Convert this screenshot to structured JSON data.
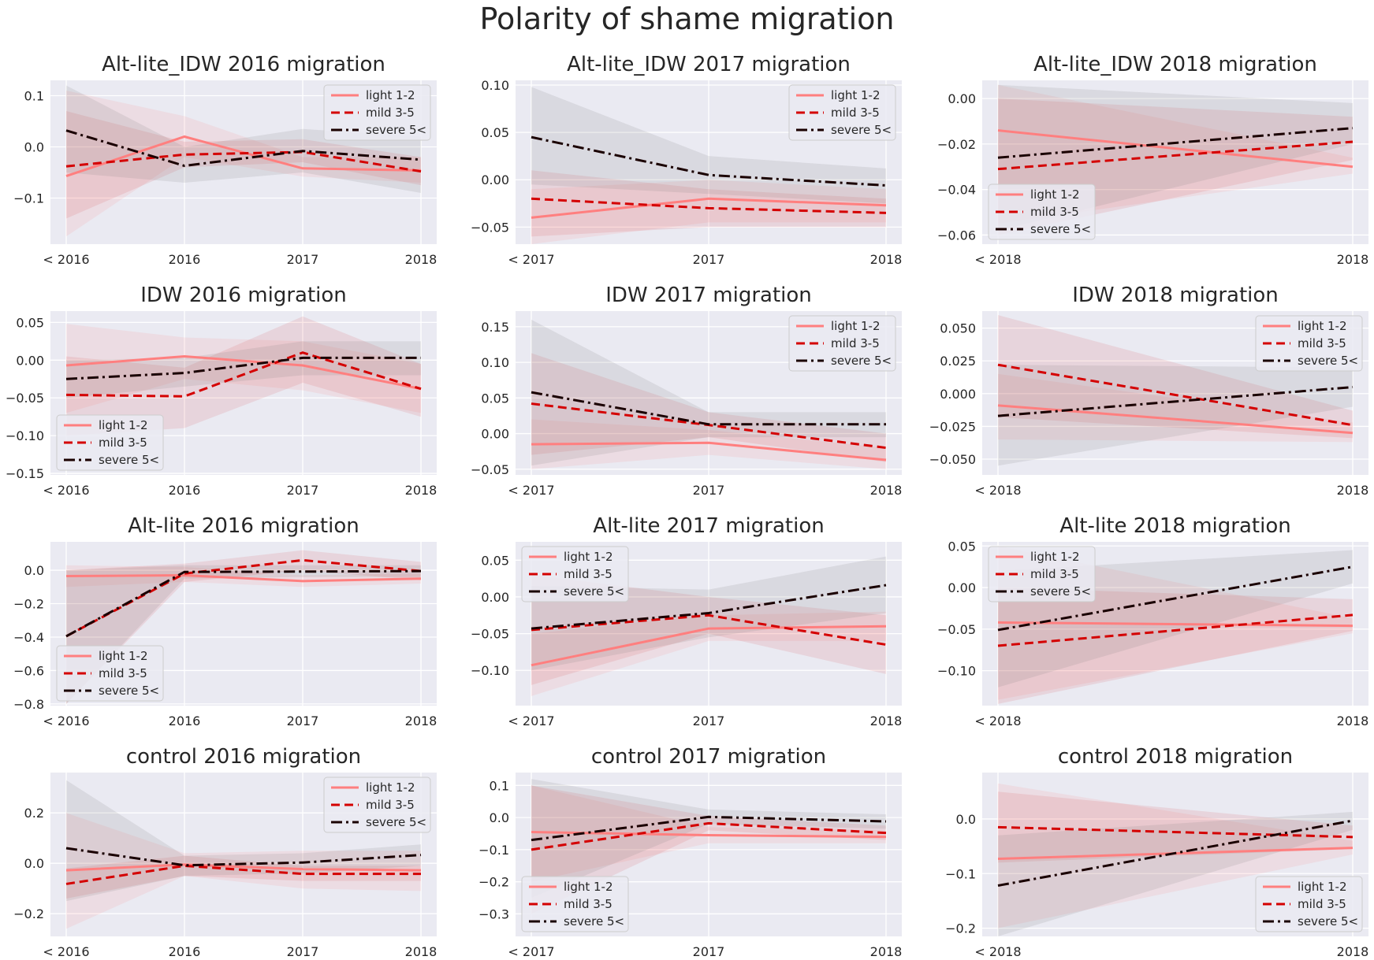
{
  "title": "Polarity of shame migration",
  "colors": {
    "light": "#ff7f7f",
    "mild": "#d40000",
    "severe": "#1a0000",
    "panel_bg": "#eaeaf2",
    "grid": "#ffffff",
    "text": "#262626"
  },
  "legend_labels": [
    "light 1-2",
    "mild 3-5",
    "severe 5<"
  ],
  "chart_data": [
    {
      "type": "line",
      "title": "Alt-lite_IDW 2016 migration",
      "categories": [
        "< 2016",
        "2016",
        "2017",
        "2018"
      ],
      "yticks": [
        0.1,
        0.0,
        -0.1
      ],
      "ytick_labels": [
        "0.1",
        "0.0",
        "−0.1"
      ],
      "ylim": [
        -0.19,
        0.13
      ],
      "legend_loc": "upper right",
      "series": [
        {
          "name": "light 1-2",
          "values": [
            -0.057,
            0.02,
            -0.042,
            -0.046
          ],
          "lower": [
            -0.175,
            -0.02,
            -0.058,
            -0.07
          ],
          "upper": [
            0.11,
            0.06,
            -0.02,
            -0.02
          ]
        },
        {
          "name": "mild 3-5",
          "values": [
            -0.038,
            -0.015,
            -0.01,
            -0.048
          ],
          "lower": [
            -0.14,
            -0.04,
            -0.03,
            -0.075
          ],
          "upper": [
            0.07,
            0.01,
            0.015,
            -0.02
          ]
        },
        {
          "name": "severe 5<",
          "values": [
            0.032,
            -0.037,
            -0.008,
            -0.025
          ],
          "lower": [
            -0.05,
            -0.07,
            -0.05,
            -0.09
          ],
          "upper": [
            0.12,
            0.0,
            0.035,
            0.02
          ]
        }
      ]
    },
    {
      "type": "line",
      "title": "Alt-lite_IDW 2017 migration",
      "categories": [
        "< 2017",
        "2017",
        "2018"
      ],
      "yticks": [
        0.1,
        0.05,
        0.0,
        -0.05
      ],
      "ytick_labels": [
        "0.10",
        "0.05",
        "0.00",
        "−0.05"
      ],
      "ylim": [
        -0.068,
        0.105
      ],
      "legend_loc": "upper right",
      "series": [
        {
          "name": "light 1-2",
          "values": [
            -0.04,
            -0.02,
            -0.027
          ],
          "lower": [
            -0.068,
            -0.045,
            -0.045
          ],
          "upper": [
            -0.01,
            0.0,
            -0.01
          ]
        },
        {
          "name": "mild 3-5",
          "values": [
            -0.02,
            -0.03,
            -0.035
          ],
          "lower": [
            -0.06,
            -0.05,
            -0.05
          ],
          "upper": [
            0.01,
            -0.01,
            -0.02
          ]
        },
        {
          "name": "severe 5<",
          "values": [
            0.045,
            0.005,
            -0.006
          ],
          "lower": [
            -0.005,
            -0.015,
            -0.025
          ],
          "upper": [
            0.098,
            0.025,
            0.012
          ]
        }
      ]
    },
    {
      "type": "line",
      "title": "Alt-lite_IDW 2018 migration",
      "categories": [
        "< 2018",
        "2018"
      ],
      "yticks": [
        0.0,
        -0.02,
        -0.04,
        -0.06
      ],
      "ytick_labels": [
        "0.00",
        "−0.02",
        "−0.04",
        "−0.06"
      ],
      "ylim": [
        -0.064,
        0.008
      ],
      "legend_loc": "lower left",
      "series": [
        {
          "name": "light 1-2",
          "values": [
            -0.014,
            -0.03
          ],
          "lower": [
            -0.055,
            -0.033
          ],
          "upper": [
            0.006,
            -0.026
          ]
        },
        {
          "name": "mild 3-5",
          "values": [
            -0.031,
            -0.019
          ],
          "lower": [
            -0.06,
            -0.027
          ],
          "upper": [
            0.0,
            -0.008
          ]
        },
        {
          "name": "severe 5<",
          "values": [
            -0.026,
            -0.013
          ],
          "lower": [
            -0.058,
            -0.02
          ],
          "upper": [
            0.006,
            -0.002
          ]
        }
      ]
    },
    {
      "type": "line",
      "title": "IDW 2016 migration",
      "categories": [
        "< 2016",
        "2016",
        "2017",
        "2018"
      ],
      "yticks": [
        0.05,
        0.0,
        -0.05,
        -0.1,
        -0.15
      ],
      "ytick_labels": [
        "0.05",
        "0.00",
        "−0.05",
        "−0.10",
        "−0.15"
      ],
      "ylim": [
        -0.152,
        0.065
      ],
      "legend_loc": "lower left",
      "series": [
        {
          "name": "light 1-2",
          "values": [
            -0.007,
            0.005,
            -0.007,
            -0.038
          ],
          "lower": [
            -0.07,
            -0.025,
            -0.04,
            -0.07
          ],
          "upper": [
            0.048,
            0.03,
            0.025,
            -0.005
          ]
        },
        {
          "name": "mild 3-5",
          "values": [
            -0.046,
            -0.048,
            0.01,
            -0.038
          ],
          "lower": [
            -0.1,
            -0.09,
            -0.03,
            -0.075
          ],
          "upper": [
            0.005,
            -0.01,
            0.058,
            -0.005
          ]
        },
        {
          "name": "severe 5<",
          "values": [
            -0.025,
            -0.017,
            0.003,
            0.003
          ],
          "lower": [
            -0.05,
            -0.035,
            -0.02,
            -0.02
          ],
          "upper": [
            0.0,
            0.003,
            0.025,
            0.025
          ]
        }
      ]
    },
    {
      "type": "line",
      "title": "IDW 2017 migration",
      "categories": [
        "< 2017",
        "2017",
        "2018"
      ],
      "yticks": [
        0.15,
        0.1,
        0.05,
        0.0,
        -0.05
      ],
      "ytick_labels": [
        "0.15",
        "0.10",
        "0.05",
        "0.00",
        "−0.05"
      ],
      "ylim": [
        -0.058,
        0.172
      ],
      "legend_loc": "upper right",
      "series": [
        {
          "name": "light 1-2",
          "values": [
            -0.015,
            -0.013,
            -0.037
          ],
          "lower": [
            -0.05,
            -0.03,
            -0.05
          ],
          "upper": [
            0.02,
            0.005,
            -0.02
          ]
        },
        {
          "name": "mild 3-5",
          "values": [
            0.042,
            0.012,
            -0.02
          ],
          "lower": [
            -0.03,
            -0.005,
            -0.04
          ],
          "upper": [
            0.113,
            0.03,
            0.0
          ]
        },
        {
          "name": "severe 5<",
          "values": [
            0.058,
            0.013,
            0.013
          ],
          "lower": [
            -0.045,
            -0.005,
            -0.005
          ],
          "upper": [
            0.16,
            0.03,
            0.03
          ]
        }
      ]
    },
    {
      "type": "line",
      "title": "IDW 2018 migration",
      "categories": [
        "< 2018",
        "2018"
      ],
      "yticks": [
        0.05,
        0.025,
        0.0,
        -0.025,
        -0.05
      ],
      "ytick_labels": [
        "0.050",
        "0.025",
        "0.000",
        "−0.025",
        "−0.050"
      ],
      "ylim": [
        -0.062,
        0.063
      ],
      "legend_loc": "upper right",
      "series": [
        {
          "name": "light 1-2",
          "values": [
            -0.009,
            -0.03
          ],
          "lower": [
            -0.035,
            -0.037
          ],
          "upper": [
            0.015,
            -0.022
          ]
        },
        {
          "name": "mild 3-5",
          "values": [
            0.022,
            -0.024
          ],
          "lower": [
            -0.018,
            -0.034
          ],
          "upper": [
            0.06,
            -0.013
          ]
        },
        {
          "name": "severe 5<",
          "values": [
            -0.017,
            0.005
          ],
          "lower": [
            -0.055,
            -0.01
          ],
          "upper": [
            0.022,
            0.02
          ]
        }
      ]
    },
    {
      "type": "line",
      "title": "Alt-lite 2016 migration",
      "categories": [
        "< 2016",
        "2016",
        "2017",
        "2018"
      ],
      "yticks": [
        0.0,
        -0.2,
        -0.4,
        -0.6,
        -0.8
      ],
      "ytick_labels": [
        "0.0",
        "−0.2",
        "−0.4",
        "−0.6",
        "−0.8"
      ],
      "ylim": [
        -0.81,
        0.17
      ],
      "legend_loc": "lower left",
      "series": [
        {
          "name": "light 1-2",
          "values": [
            -0.035,
            -0.03,
            -0.065,
            -0.05
          ],
          "lower": [
            -0.1,
            -0.07,
            -0.1,
            -0.08
          ],
          "upper": [
            0.03,
            0.02,
            -0.03,
            -0.02
          ]
        },
        {
          "name": "mild 3-5",
          "values": [
            -0.395,
            -0.02,
            0.06,
            -0.005
          ],
          "lower": [
            -0.8,
            -0.07,
            0.0,
            -0.06
          ],
          "upper": [
            0.0,
            0.04,
            0.12,
            0.05
          ]
        },
        {
          "name": "severe 5<",
          "values": [
            -0.395,
            -0.01,
            -0.008,
            -0.005
          ],
          "lower": [
            -0.8,
            -0.05,
            -0.04,
            -0.04
          ],
          "upper": [
            0.0,
            0.03,
            0.03,
            0.03
          ]
        }
      ]
    },
    {
      "type": "line",
      "title": "Alt-lite 2017 migration",
      "categories": [
        "< 2017",
        "2017",
        "2018"
      ],
      "yticks": [
        0.05,
        0.0,
        -0.05,
        -0.1
      ],
      "ytick_labels": [
        "0.05",
        "0.00",
        "−0.05",
        "−0.10"
      ],
      "ylim": [
        -0.148,
        0.075
      ],
      "legend_loc": "upper left",
      "series": [
        {
          "name": "light 1-2",
          "values": [
            -0.093,
            -0.043,
            -0.04
          ],
          "lower": [
            -0.135,
            -0.06,
            -0.06
          ],
          "upper": [
            -0.05,
            -0.025,
            -0.02
          ]
        },
        {
          "name": "mild 3-5",
          "values": [
            -0.045,
            -0.025,
            -0.065
          ],
          "lower": [
            -0.12,
            -0.05,
            -0.105
          ],
          "upper": [
            0.03,
            0.0,
            -0.025
          ]
        },
        {
          "name": "severe 5<",
          "values": [
            -0.043,
            -0.022,
            0.016
          ],
          "lower": [
            -0.1,
            -0.055,
            -0.022
          ],
          "upper": [
            0.015,
            0.01,
            0.055
          ]
        }
      ]
    },
    {
      "type": "line",
      "title": "Alt-lite 2018 migration",
      "categories": [
        "< 2018",
        "2018"
      ],
      "yticks": [
        0.05,
        0.0,
        -0.05,
        -0.1
      ],
      "ytick_labels": [
        "0.05",
        "0.00",
        "−0.05",
        "−0.10"
      ],
      "ylim": [
        -0.142,
        0.055
      ],
      "legend_loc": "upper left",
      "series": [
        {
          "name": "light 1-2",
          "values": [
            -0.042,
            -0.046
          ],
          "lower": [
            -0.135,
            -0.055
          ],
          "upper": [
            0.05,
            -0.037
          ]
        },
        {
          "name": "mild 3-5",
          "values": [
            -0.07,
            -0.033
          ],
          "lower": [
            -0.14,
            -0.052
          ],
          "upper": [
            0.0,
            -0.014
          ]
        },
        {
          "name": "severe 5<",
          "values": [
            -0.051,
            0.025
          ],
          "lower": [
            -0.12,
            0.005
          ],
          "upper": [
            0.02,
            0.045
          ]
        }
      ]
    },
    {
      "type": "line",
      "title": "control 2016 migration",
      "categories": [
        "< 2016",
        "2016",
        "2017",
        "2018"
      ],
      "yticks": [
        0.2,
        0.0,
        -0.2
      ],
      "ytick_labels": [
        "0.2",
        "0.0",
        "−0.2"
      ],
      "ylim": [
        -0.29,
        0.36
      ],
      "legend_loc": "upper right",
      "series": [
        {
          "name": "light 1-2",
          "values": [
            -0.028,
            -0.005,
            -0.023,
            -0.028
          ],
          "lower": [
            -0.26,
            -0.05,
            -0.1,
            -0.11
          ],
          "upper": [
            0.2,
            0.04,
            0.05,
            0.05
          ]
        },
        {
          "name": "mild 3-5",
          "values": [
            -0.082,
            -0.01,
            -0.042,
            -0.042
          ],
          "lower": [
            -0.14,
            -0.05,
            -0.07,
            -0.07
          ],
          "upper": [
            -0.02,
            0.03,
            -0.01,
            -0.01
          ]
        },
        {
          "name": "severe 5<",
          "values": [
            0.06,
            -0.008,
            0.003,
            0.033
          ],
          "lower": [
            -0.15,
            -0.05,
            -0.04,
            -0.01
          ],
          "upper": [
            0.33,
            0.03,
            0.04,
            0.075
          ]
        }
      ]
    },
    {
      "type": "line",
      "title": "control 2017 migration",
      "categories": [
        "< 2017",
        "2017",
        "2018"
      ],
      "yticks": [
        0.1,
        0.0,
        -0.1,
        -0.2,
        -0.3
      ],
      "ytick_labels": [
        "0.1",
        "0.0",
        "−0.1",
        "−0.2",
        "−0.3"
      ],
      "ylim": [
        -0.37,
        0.14
      ],
      "legend_loc": "lower left",
      "series": [
        {
          "name": "light 1-2",
          "values": [
            -0.045,
            -0.055,
            -0.06
          ],
          "lower": [
            -0.2,
            -0.08,
            -0.08
          ],
          "upper": [
            0.1,
            -0.03,
            -0.04
          ]
        },
        {
          "name": "mild 3-5",
          "values": [
            -0.1,
            -0.018,
            -0.048
          ],
          "lower": [
            -0.3,
            -0.04,
            -0.07
          ],
          "upper": [
            0.1,
            0.005,
            -0.025
          ]
        },
        {
          "name": "severe 5<",
          "values": [
            -0.07,
            0.002,
            -0.012
          ],
          "lower": [
            -0.25,
            -0.02,
            -0.035
          ],
          "upper": [
            0.12,
            0.025,
            0.01
          ]
        }
      ]
    },
    {
      "type": "line",
      "title": "control 2018 migration",
      "categories": [
        "< 2018",
        "2018"
      ],
      "yticks": [
        0.0,
        -0.1,
        -0.2
      ],
      "ytick_labels": [
        "0.0",
        "−0.1",
        "−0.2"
      ],
      "ylim": [
        -0.215,
        0.085
      ],
      "legend_loc": "lower right",
      "series": [
        {
          "name": "light 1-2",
          "values": [
            -0.073,
            -0.053
          ],
          "lower": [
            -0.2,
            -0.065
          ],
          "upper": [
            0.065,
            -0.04
          ]
        },
        {
          "name": "mild 3-5",
          "values": [
            -0.015,
            -0.033
          ],
          "lower": [
            -0.08,
            -0.055
          ],
          "upper": [
            0.05,
            -0.012
          ]
        },
        {
          "name": "severe 5<",
          "values": [
            -0.122,
            -0.003
          ],
          "lower": [
            -0.215,
            -0.02
          ],
          "upper": [
            -0.03,
            0.013
          ]
        }
      ]
    }
  ]
}
